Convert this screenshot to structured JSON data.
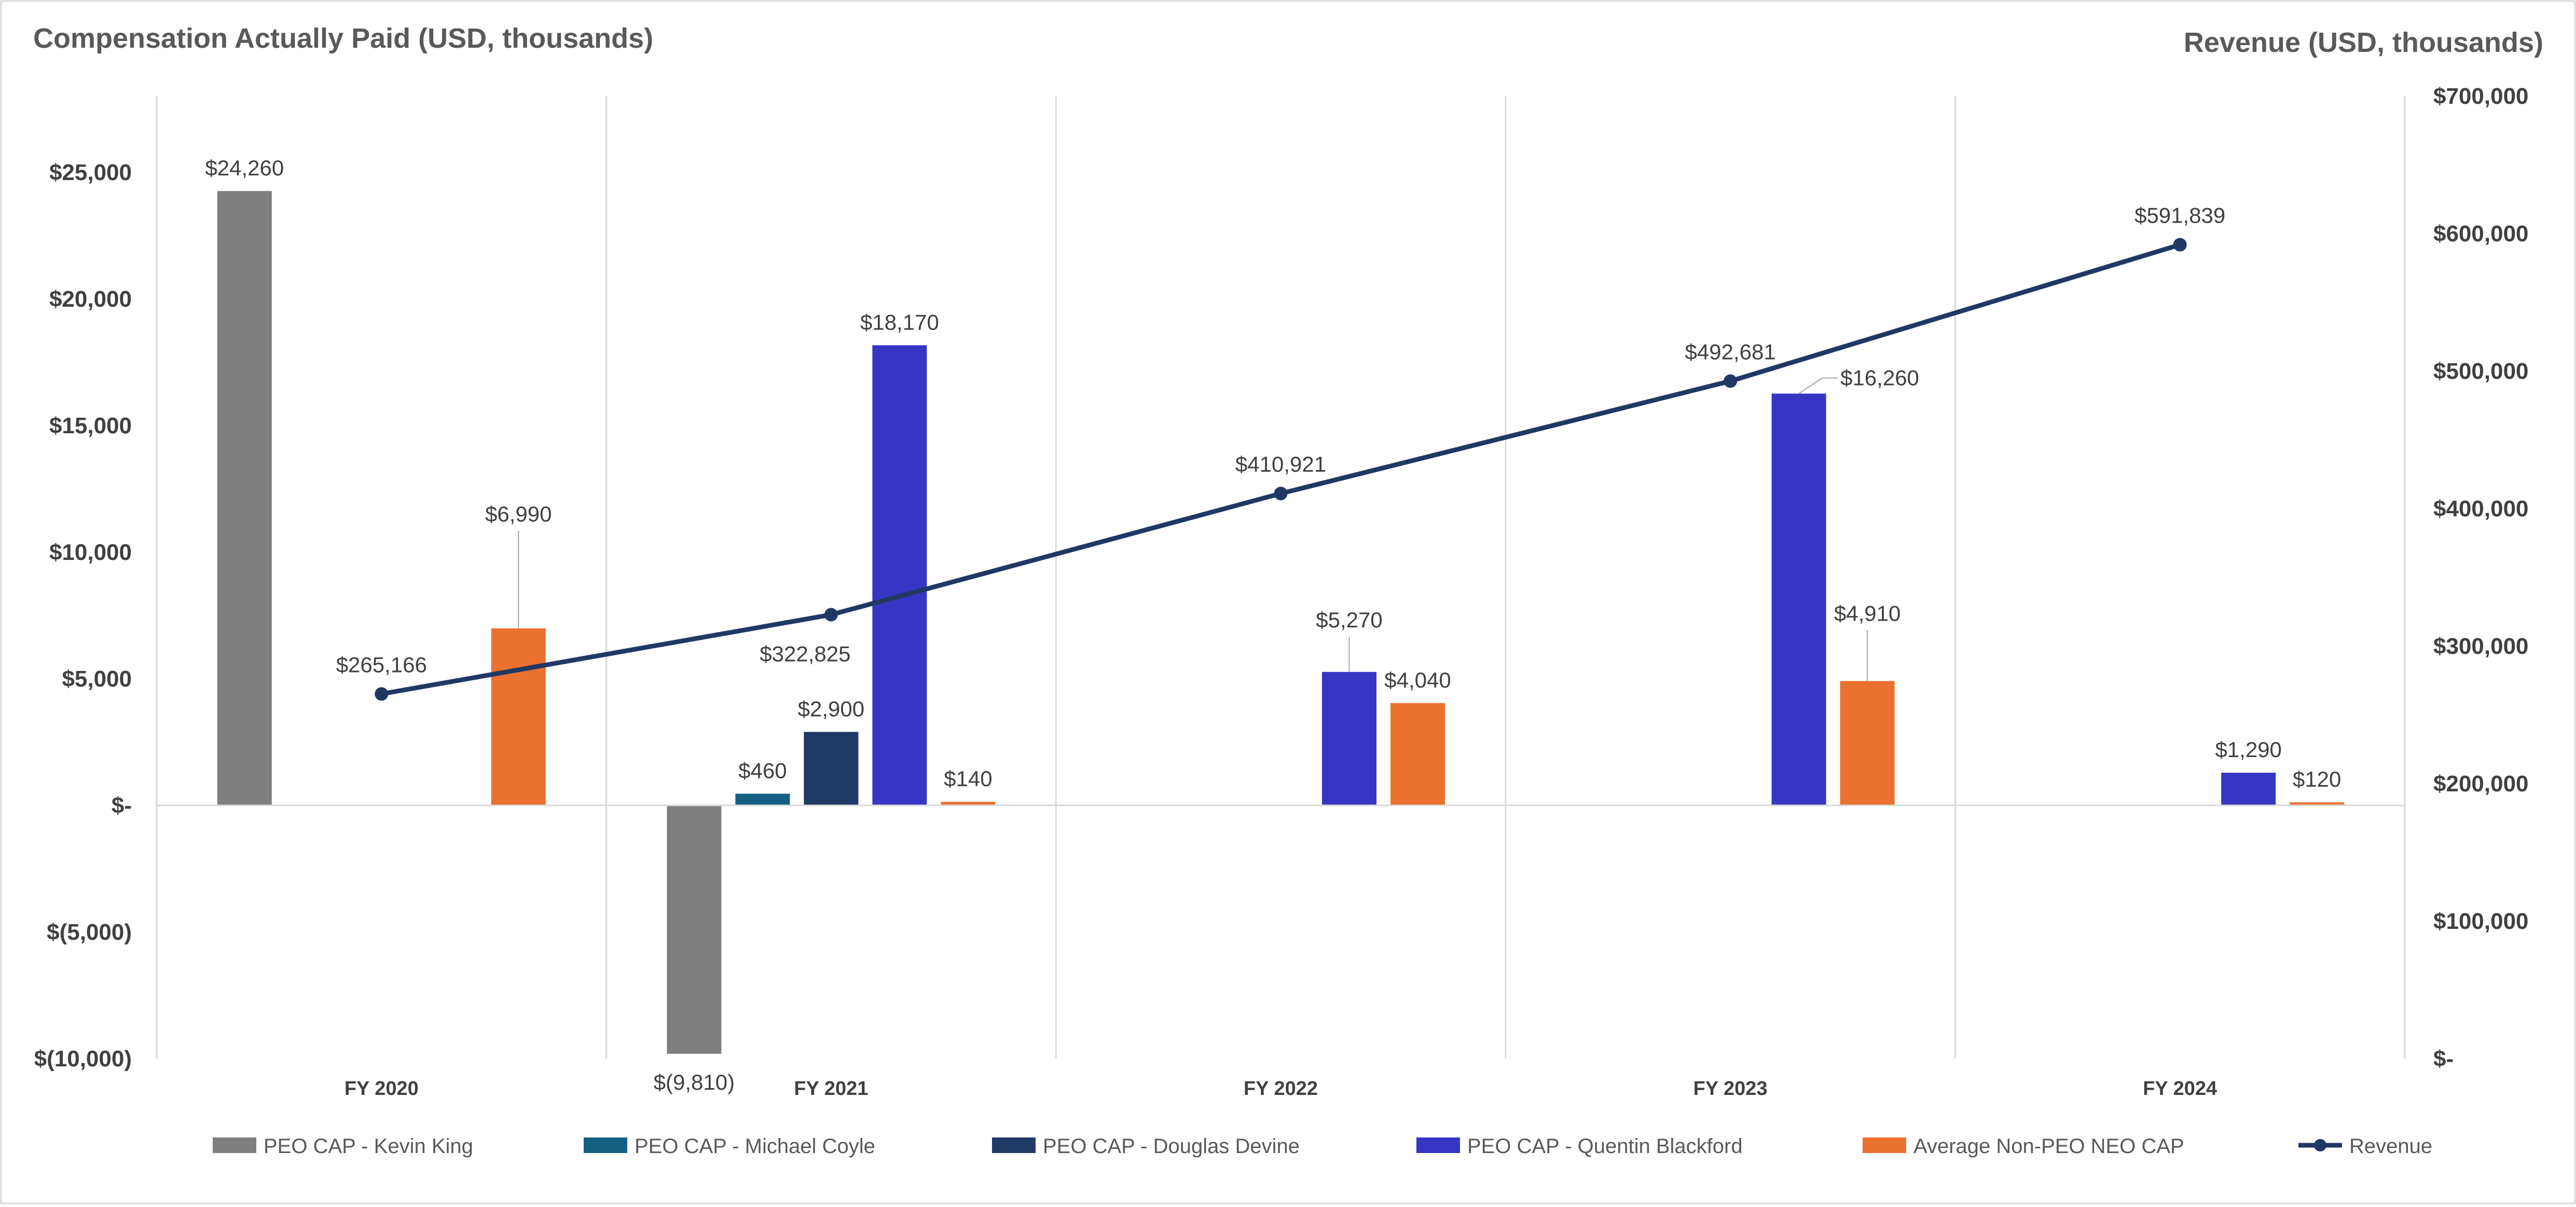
{
  "chart_data": {
    "type": "bar",
    "combo": "clustered bar with line on secondary axis",
    "title_left": "Compensation Actually Paid (USD, thousands)",
    "title_right": "Revenue (USD, thousands)",
    "categories": [
      "FY 2020",
      "FY 2021",
      "FY 2022",
      "FY 2023",
      "FY 2024"
    ],
    "left_axis": {
      "min": -10000,
      "max": 27000,
      "ticks": [
        25000,
        20000,
        15000,
        10000,
        5000,
        0,
        -5000,
        -10000
      ],
      "tick_labels": [
        "$25,000",
        "$20,000",
        "$15,000",
        "$10,000",
        "$5,000",
        "$-",
        "$(5,000)",
        "$(10,000)"
      ]
    },
    "right_axis": {
      "min": 0,
      "max": 700000,
      "ticks": [
        700000,
        600000,
        500000,
        400000,
        300000,
        200000,
        100000,
        0
      ],
      "tick_labels": [
        "$700,000",
        "$600,000",
        "$500,000",
        "$400,000",
        "$300,000",
        "$200,000",
        "$100,000",
        "$-"
      ]
    },
    "series": [
      {
        "name": "PEO CAP - Kevin King",
        "color": "#7f7f7f",
        "values": [
          24260,
          -9810,
          null,
          null,
          null
        ],
        "labels": [
          "$24,260",
          "$(9,810)",
          "",
          "",
          ""
        ]
      },
      {
        "name": "PEO CAP - Michael Coyle",
        "color": "#156082",
        "values": [
          null,
          460,
          null,
          null,
          null
        ],
        "labels": [
          "",
          "$460",
          "",
          "",
          ""
        ]
      },
      {
        "name": "PEO CAP - Douglas Devine",
        "color": "#1f3a64",
        "values": [
          null,
          2900,
          null,
          null,
          null
        ],
        "labels": [
          "",
          "$2,900",
          "",
          "",
          ""
        ]
      },
      {
        "name": "PEO CAP - Quentin Blackford",
        "color": "#3636c4",
        "values": [
          null,
          18170,
          5270,
          16260,
          1290
        ],
        "labels": [
          "",
          "$18,170",
          "$5,270",
          "$16,260",
          "$1,290"
        ]
      },
      {
        "name": "Average Non-PEO NEO CAP",
        "color": "#ea7130",
        "values": [
          6990,
          140,
          4040,
          4910,
          120
        ],
        "labels": [
          "$6,990",
          "$140",
          "$4,040",
          "$4,910",
          "$120"
        ]
      }
    ],
    "line_series": {
      "name": "Revenue",
      "color": "#203864",
      "axis": "right",
      "values": [
        265166,
        322825,
        410921,
        492681,
        591839
      ],
      "labels": [
        "$265,166",
        "$322,825",
        "$410,921",
        "$492,681",
        "$591,839"
      ]
    },
    "legend_position": "bottom",
    "grid": "vertical category separators"
  }
}
